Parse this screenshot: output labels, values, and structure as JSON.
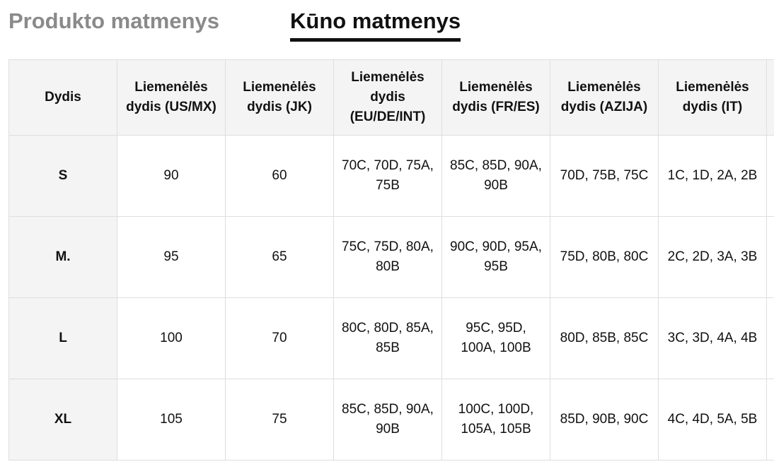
{
  "tabs": {
    "product": "Produkto matmenys",
    "body": "Kūno matmenys"
  },
  "table": {
    "headers": [
      "Dydis",
      "Liemenėlės dydis (US/MX)",
      "Liemenėlės dydis (JK)",
      "Liemenėlės dydis (EU/DE/INT)",
      "Liemenėlės dydis (FR/ES)",
      "Liemenėlės dydis (AZIJA)",
      "Liemenėlės dydis (IT)",
      ""
    ],
    "rows": [
      [
        "S",
        "90",
        "60",
        "70C, 70D, 75A, 75B",
        "85C, 85D, 90A, 90B",
        "70D, 75B, 75C",
        "1C, 1D, 2A, 2B",
        ""
      ],
      [
        "M.",
        "95",
        "65",
        "75C, 75D, 80A, 80B",
        "90C, 90D, 95A, 95B",
        "75D, 80B, 80C",
        "2C, 2D, 3A, 3B",
        ""
      ],
      [
        "L",
        "100",
        "70",
        "80C, 80D, 85A, 85B",
        "95C, 95D, 100A, 100B",
        "80D, 85B, 85C",
        "3C, 3D, 4A, 4B",
        ""
      ],
      [
        "XL",
        "105",
        "75",
        "85C, 85D, 90A, 90B",
        "100C, 100D, 105A, 105B",
        "85D, 90B, 90C",
        "4C, 4D, 5A, 5B",
        ""
      ]
    ]
  }
}
